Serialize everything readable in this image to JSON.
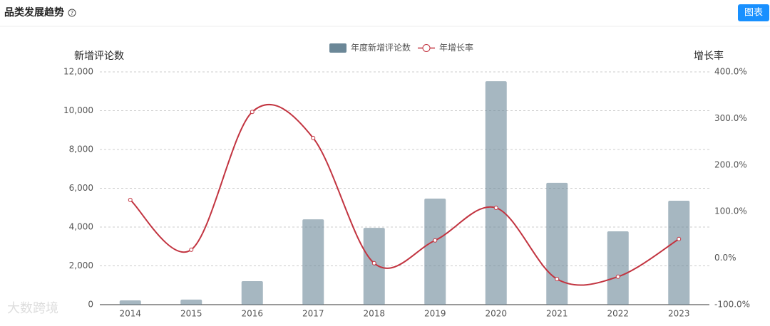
{
  "header": {
    "title": "品类发展趋势",
    "button": "图表"
  },
  "watermark": "大数跨境",
  "chart_data": {
    "type": "bar",
    "y_label": "新增评论数",
    "y2_label": "增长率",
    "categories": [
      "2014",
      "2015",
      "2016",
      "2017",
      "2018",
      "2019",
      "2020",
      "2021",
      "2022",
      "2023"
    ],
    "series": [
      {
        "name": "年度新增评论数",
        "type": "bar",
        "color": "#6b8797",
        "values": [
          220,
          260,
          1210,
          4400,
          3960,
          5470,
          11520,
          6280,
          3780,
          5360
        ]
      },
      {
        "name": "年增长率",
        "type": "line",
        "axis": "y2",
        "color": "#c23440",
        "values": [
          125,
          18,
          314,
          258,
          -11,
          38,
          108,
          -45,
          -40,
          41
        ]
      }
    ],
    "ylim": [
      0,
      12000
    ],
    "yticks": [
      0,
      {
        "value": 2000,
        "label": "2,000"
      },
      {
        "value": 4000,
        "label": "4,000"
      },
      {
        "value": 6000,
        "label": "6,000"
      },
      {
        "value": 8000,
        "label": "8,000"
      },
      {
        "value": 10000,
        "label": "10,000"
      },
      {
        "value": 12000,
        "label": "12,000"
      }
    ],
    "y2lim": [
      -100,
      400
    ],
    "y2ticks": [
      {
        "value": -100,
        "label": "-100.0%"
      },
      {
        "value": 0,
        "label": "0.0%"
      },
      {
        "value": 100,
        "label": "100.0%"
      },
      {
        "value": 200,
        "label": "200.0%"
      },
      {
        "value": 300,
        "label": "300.0%"
      },
      {
        "value": 400,
        "label": "400.0%"
      }
    ],
    "grid": true
  }
}
